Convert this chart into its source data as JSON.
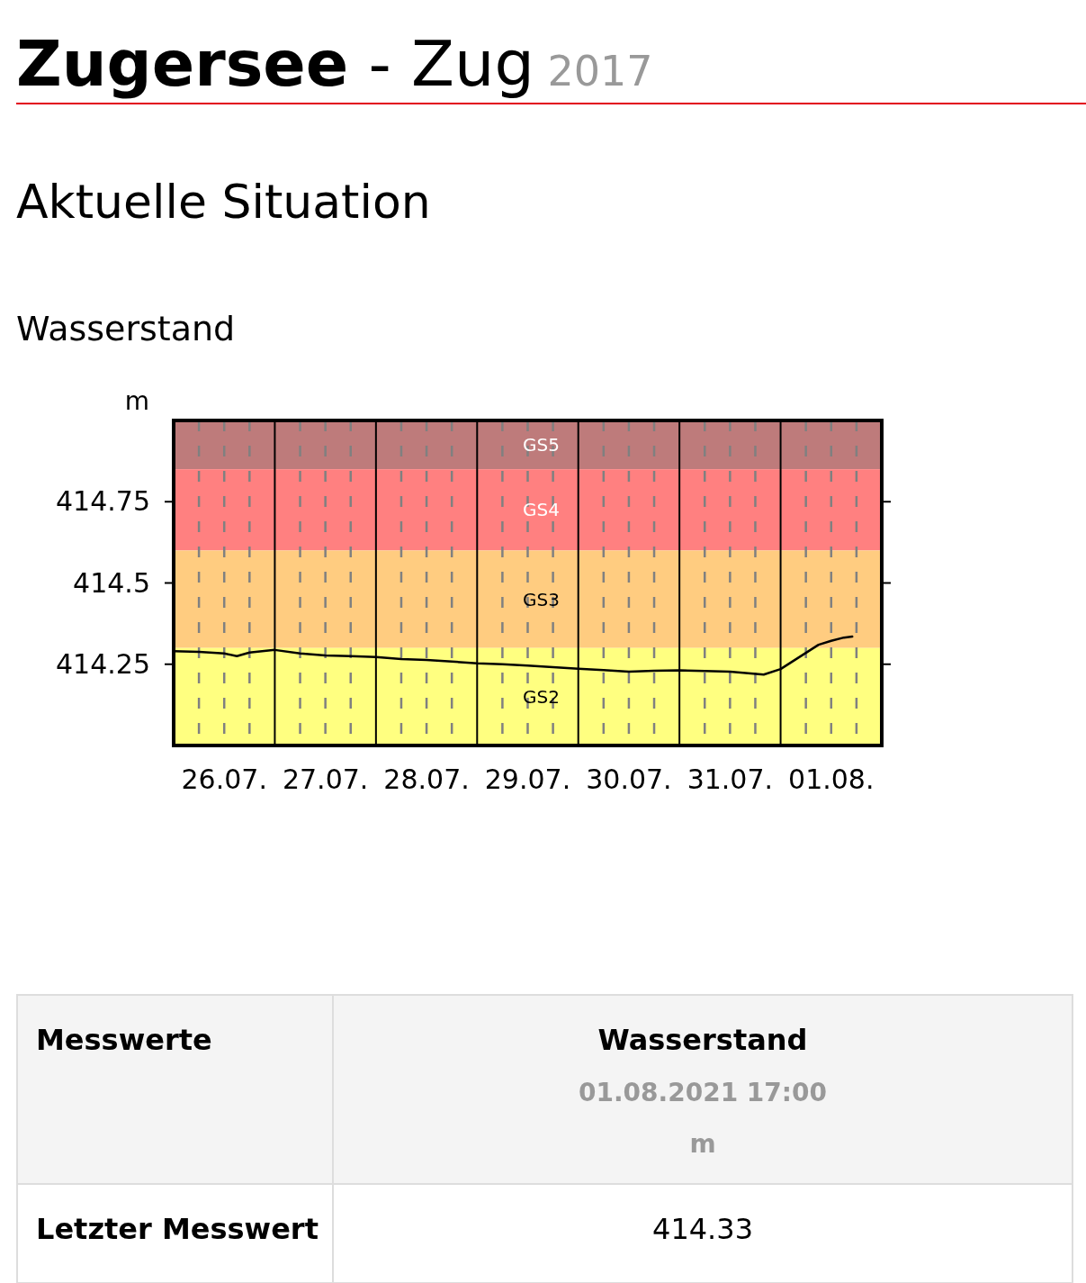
{
  "chart_data": {
    "type": "line",
    "title": "Zugersee - Zug 2017",
    "subtitle": "Aktuelle Situation",
    "ylabel": "m",
    "annotations": [
      "Wasserstand",
      "Messwerte",
      "Wasserstand",
      "01.08.2021 17:00",
      "m",
      "Letzter Messwert",
      "414.33"
    ],
    "x": [
      "2017-07-26T00:00",
      "2017-07-26T06:00",
      "2017-07-26T12:00",
      "2017-07-26T15:00",
      "2017-07-26T18:00",
      "2017-07-27T00:00",
      "2017-07-27T06:00",
      "2017-07-27T12:00",
      "2017-07-27T18:00",
      "2017-07-28T00:00",
      "2017-07-28T06:00",
      "2017-07-28T12:00",
      "2017-07-28T18:00",
      "2017-07-29T00:00",
      "2017-07-29T06:00",
      "2017-07-29T12:00",
      "2017-07-29T18:00",
      "2017-07-30T00:00",
      "2017-07-30T06:00",
      "2017-07-30T12:00",
      "2017-07-30T18:00",
      "2017-07-31T00:00",
      "2017-07-31T06:00",
      "2017-07-31T12:00",
      "2017-07-31T20:00",
      "2017-08-01T00:00",
      "2017-08-01T03:00",
      "2017-08-01T06:00",
      "2017-08-01T09:00",
      "2017-08-01T12:00",
      "2017-08-01T15:00",
      "2017-08-01T17:00"
    ],
    "series": [
      {
        "color": "#000000",
        "values": [
          414.29,
          414.288,
          414.283,
          414.275,
          414.286,
          414.294,
          414.283,
          414.277,
          414.275,
          414.272,
          414.266,
          414.263,
          414.258,
          414.253,
          414.25,
          414.246,
          414.241,
          414.236,
          414.232,
          414.227,
          414.23,
          414.231,
          414.229,
          414.227,
          414.218,
          414.235,
          414.26,
          414.285,
          414.31,
          414.322,
          414.332,
          414.335
        ]
      }
    ],
    "xlim": [
      "2017-07-26T00:00",
      "2017-08-02T00:00"
    ],
    "xticks": [
      {
        "value": "2017-07-26T00:00",
        "label": null
      },
      {
        "value": "2017-07-26T06:00",
        "label": null
      },
      {
        "value": "2017-07-26T12:00",
        "label": "26.07."
      },
      {
        "value": "2017-07-26T18:00",
        "label": null
      },
      {
        "value": "2017-07-27T00:00",
        "label": null
      },
      {
        "value": "2017-07-27T06:00",
        "label": null
      },
      {
        "value": "2017-07-27T12:00",
        "label": "27.07."
      },
      {
        "value": "2017-07-27T18:00",
        "label": null
      },
      {
        "value": "2017-07-28T00:00",
        "label": null
      },
      {
        "value": "2017-07-28T06:00",
        "label": null
      },
      {
        "value": "2017-07-28T12:00",
        "label": "28.07."
      },
      {
        "value": "2017-07-28T18:00",
        "label": null
      },
      {
        "value": "2017-07-29T00:00",
        "label": null
      },
      {
        "value": "2017-07-29T06:00",
        "label": null
      },
      {
        "value": "2017-07-29T12:00",
        "label": "29.07."
      },
      {
        "value": "2017-07-29T18:00",
        "label": null
      },
      {
        "value": "2017-07-30T00:00",
        "label": null
      },
      {
        "value": "2017-07-30T06:00",
        "label": null
      },
      {
        "value": "2017-07-30T12:00",
        "label": "30.07."
      },
      {
        "value": "2017-07-30T18:00",
        "label": null
      },
      {
        "value": "2017-07-31T00:00",
        "label": null
      },
      {
        "value": "2017-07-31T06:00",
        "label": null
      },
      {
        "value": "2017-07-31T12:00",
        "label": "31.07."
      },
      {
        "value": "2017-07-31T18:00",
        "label": null
      },
      {
        "value": "2017-08-01T00:00",
        "label": null
      },
      {
        "value": "2017-08-01T06:00",
        "label": null
      },
      {
        "value": "2017-08-01T12:00",
        "label": "01.08."
      },
      {
        "value": "2017-08-01T18:00",
        "label": null
      },
      {
        "value": "2017-08-02T00:00",
        "label": null
      }
    ],
    "ylim": [
      414,
      415
    ],
    "yticks": [
      414.25,
      414.5,
      414.75
    ],
    "bands": [
      {
        "axis": "y",
        "from": 414.85,
        "to": 415,
        "label": "GS5",
        "color": "#be7b7b"
      },
      {
        "axis": "y",
        "from": 414.6,
        "to": 414.85,
        "label": "GS4",
        "color": "#ff8080"
      },
      {
        "axis": "y",
        "from": 414.3,
        "to": 414.6,
        "label": "GS3",
        "color": "#ffcc80"
      },
      {
        "axis": "y",
        "from": 414,
        "to": 414.3,
        "label": "GS2",
        "color": "#ffff80"
      }
    ],
    "grid": "x",
    "marker": "none",
    "line_style": "solid"
  }
}
